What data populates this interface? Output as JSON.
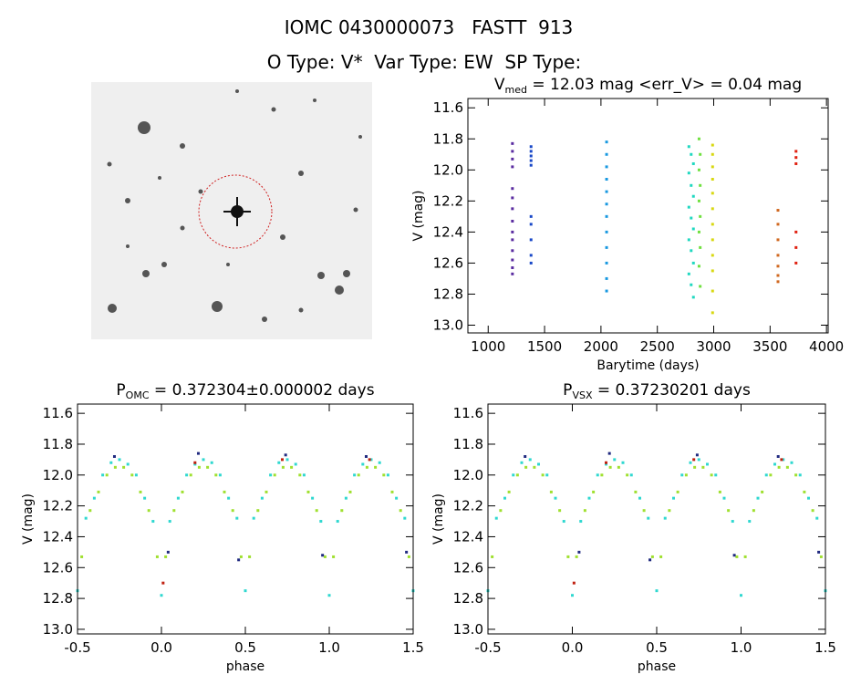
{
  "header": {
    "title": "IOMC 0430000073   FASTT  913",
    "subtitle": "O Type: V*  Var Type: EW  SP Type:"
  },
  "chart_data": [
    {
      "type": "scatter",
      "title": "V",
      "title_sub": "med",
      "title_rest": " = 12.03 mag <err_V> = 0.04 mag",
      "x_label": "Barytime (days)",
      "y_label": "V (mag)",
      "xlim": [
        820,
        4015
      ],
      "ylim": [
        13.05,
        11.54
      ],
      "xticks": [
        1000,
        1500,
        2000,
        2500,
        3000,
        3500,
        4000
      ],
      "yticks": [
        11.6,
        11.8,
        {
          "value": 12,
          "label": "12.0"
        },
        12.2,
        12.4,
        12.6,
        12.8,
        {
          "value": 13,
          "label": "13.0"
        }
      ],
      "series": [
        {
          "color": "#5a2ca0",
          "x": [
            1215,
            1215,
            1215,
            1215,
            1215,
            1215,
            1215,
            1215,
            1215,
            1215,
            1215,
            1215,
            1215,
            1215
          ],
          "values": [
            11.83,
            11.88,
            11.93,
            11.98,
            12.12,
            12.18,
            12.25,
            12.33,
            12.4,
            12.45,
            12.52,
            12.58,
            12.63,
            12.67
          ]
        },
        {
          "color": "#1848c8",
          "x": [
            1380,
            1380,
            1380,
            1380,
            1380,
            1380,
            1380,
            1380,
            1380,
            1380
          ],
          "values": [
            11.85,
            11.88,
            11.91,
            11.94,
            11.97,
            12.3,
            12.35,
            12.45,
            12.55,
            12.6
          ]
        },
        {
          "color": "#1898e0",
          "x": [
            2050,
            2050,
            2050,
            2050,
            2050,
            2050,
            2050,
            2050,
            2050,
            2050,
            2050,
            2050
          ],
          "values": [
            11.82,
            11.9,
            11.98,
            12.06,
            12.14,
            12.22,
            12.3,
            12.4,
            12.5,
            12.6,
            12.7,
            12.78
          ]
        },
        {
          "color": "#20d8c0",
          "x": [
            2780,
            2800,
            2820,
            2780,
            2800,
            2820,
            2780,
            2800,
            2820,
            2780,
            2800,
            2820,
            2780,
            2800,
            2820
          ],
          "values": [
            11.85,
            11.9,
            11.96,
            12.02,
            12.1,
            12.17,
            12.24,
            12.31,
            12.38,
            12.45,
            12.52,
            12.6,
            12.67,
            12.74,
            12.82
          ]
        },
        {
          "color": "#70e040",
          "x": [
            2870,
            2880,
            2870,
            2880,
            2870,
            2880,
            2870,
            2880,
            2870,
            2880
          ],
          "values": [
            11.8,
            11.9,
            12.0,
            12.1,
            12.2,
            12.3,
            12.4,
            12.5,
            12.62,
            12.75
          ]
        },
        {
          "color": "#d8d810",
          "x": [
            2990,
            2990,
            2990,
            2990,
            2990,
            2990,
            2990,
            2990,
            2990,
            2990,
            2990,
            2990
          ],
          "values": [
            11.84,
            11.9,
            11.98,
            12.06,
            12.15,
            12.25,
            12.35,
            12.45,
            12.55,
            12.65,
            12.78,
            12.92
          ]
        },
        {
          "color": "#d06820",
          "x": [
            3570,
            3570,
            3570,
            3570,
            3570,
            3570,
            3570
          ],
          "values": [
            12.26,
            12.35,
            12.45,
            12.55,
            12.62,
            12.68,
            12.72
          ]
        },
        {
          "color": "#e02010",
          "x": [
            3730,
            3730,
            3730,
            3730,
            3730,
            3730
          ],
          "values": [
            11.88,
            11.92,
            11.96,
            12.4,
            12.5,
            12.6
          ]
        }
      ]
    },
    {
      "type": "scatter",
      "title": "P",
      "title_sub": "OMC",
      "title_rest": " = 0.372304±0.000002 days",
      "x_label": "phase",
      "y_label": "V (mag)",
      "xlim": [
        -0.5,
        1.5
      ],
      "ylim": [
        13.03,
        11.54
      ],
      "xticks": [
        -0.5,
        {
          "value": 0,
          "label": "0.0"
        },
        0.5,
        {
          "value": 1,
          "label": "1.0"
        },
        1.5
      ],
      "yticks": [
        11.6,
        11.8,
        {
          "value": 12,
          "label": "12.0"
        },
        12.2,
        12.4,
        12.6,
        12.8,
        {
          "value": 13,
          "label": "13.0"
        }
      ],
      "series": [
        {
          "color": "#30d8d0",
          "x": [
            -0.5,
            -0.45,
            -0.4,
            -0.35,
            -0.3,
            -0.25,
            -0.2,
            -0.15,
            -0.1,
            -0.05,
            0,
            0.05,
            0.1,
            0.15,
            0.2,
            0.25,
            0.3,
            0.35,
            0.4,
            0.45,
            0.5,
            0.55,
            0.6,
            0.65,
            0.7,
            0.75,
            0.8,
            0.85,
            0.9,
            0.95,
            1,
            1.05,
            1.1,
            1.15,
            1.2,
            1.25,
            1.3,
            1.35,
            1.4,
            1.45,
            1.5
          ],
          "values": [
            12.75,
            12.28,
            12.15,
            12.0,
            11.92,
            11.9,
            11.93,
            12.0,
            12.15,
            12.3,
            12.78,
            12.3,
            12.15,
            12.0,
            11.93,
            11.9,
            11.92,
            12.0,
            12.15,
            12.28,
            12.75,
            12.28,
            12.15,
            12.0,
            11.92,
            11.9,
            11.93,
            12.0,
            12.15,
            12.3,
            12.78,
            12.3,
            12.15,
            12.0,
            11.93,
            11.9,
            11.92,
            12.0,
            12.15,
            12.28,
            12.75
          ]
        },
        {
          "color": "#a0e030",
          "x": [
            -0.475,
            -0.425,
            -0.375,
            -0.325,
            -0.275,
            -0.225,
            -0.175,
            -0.125,
            -0.075,
            -0.025,
            0.025,
            0.075,
            0.125,
            0.175,
            0.225,
            0.275,
            0.325,
            0.375,
            0.425,
            0.475,
            0.525,
            0.575,
            0.625,
            0.675,
            0.725,
            0.775,
            0.825,
            0.875,
            0.925,
            0.975,
            1.025,
            1.075,
            1.125,
            1.175,
            1.225,
            1.275,
            1.325,
            1.375,
            1.425,
            1.475
          ],
          "values": [
            12.53,
            12.23,
            12.11,
            12.0,
            11.95,
            11.95,
            12.0,
            12.11,
            12.23,
            12.53,
            12.53,
            12.23,
            12.11,
            12.0,
            11.95,
            11.95,
            12.0,
            12.11,
            12.23,
            12.53,
            12.53,
            12.23,
            12.11,
            12.0,
            11.95,
            11.95,
            12.0,
            12.11,
            12.23,
            12.53,
            12.53,
            12.23,
            12.11,
            12.0,
            11.95,
            11.95,
            12.0,
            12.11,
            12.23,
            12.53
          ]
        },
        {
          "color": "#202a80",
          "x": [
            -0.28,
            0.22,
            0.04,
            0.46,
            0.74,
            0.96,
            1.22,
            1.46
          ],
          "values": [
            11.88,
            11.86,
            12.5,
            12.55,
            11.87,
            12.52,
            11.88,
            12.5
          ]
        },
        {
          "color": "#c02010",
          "x": [
            0.2,
            0.01,
            0.72,
            1.24
          ],
          "values": [
            11.92,
            12.7,
            11.9,
            11.9
          ]
        }
      ]
    },
    {
      "type": "scatter",
      "title": "P",
      "title_sub": "VSX",
      "title_rest": " = 0.37230201 days",
      "x_label": "phase",
      "y_label": "V (mag)",
      "xlim": [
        -0.5,
        1.5
      ],
      "ylim": [
        13.03,
        11.54
      ],
      "xticks": [
        -0.5,
        {
          "value": 0,
          "label": "0.0"
        },
        0.5,
        {
          "value": 1,
          "label": "1.0"
        },
        1.5
      ],
      "yticks": [
        11.6,
        11.8,
        {
          "value": 12,
          "label": "12.0"
        },
        12.2,
        12.4,
        12.6,
        12.8,
        {
          "value": 13,
          "label": "13.0"
        }
      ],
      "series": [
        {
          "color": "#30d8d0",
          "x": [
            -0.5,
            -0.45,
            -0.4,
            -0.35,
            -0.3,
            -0.25,
            -0.2,
            -0.15,
            -0.1,
            -0.05,
            0,
            0.05,
            0.1,
            0.15,
            0.2,
            0.25,
            0.3,
            0.35,
            0.4,
            0.45,
            0.5,
            0.55,
            0.6,
            0.65,
            0.7,
            0.75,
            0.8,
            0.85,
            0.9,
            0.95,
            1,
            1.05,
            1.1,
            1.15,
            1.2,
            1.25,
            1.3,
            1.35,
            1.4,
            1.45,
            1.5
          ],
          "values": [
            12.75,
            12.28,
            12.15,
            12.0,
            11.92,
            11.9,
            11.93,
            12.0,
            12.15,
            12.3,
            12.78,
            12.3,
            12.15,
            12.0,
            11.93,
            11.9,
            11.92,
            12.0,
            12.15,
            12.28,
            12.75,
            12.28,
            12.15,
            12.0,
            11.92,
            11.9,
            11.93,
            12.0,
            12.15,
            12.3,
            12.78,
            12.3,
            12.15,
            12.0,
            11.93,
            11.9,
            11.92,
            12.0,
            12.15,
            12.28,
            12.75
          ]
        },
        {
          "color": "#a0e030",
          "x": [
            -0.475,
            -0.425,
            -0.375,
            -0.325,
            -0.275,
            -0.225,
            -0.175,
            -0.125,
            -0.075,
            -0.025,
            0.025,
            0.075,
            0.125,
            0.175,
            0.225,
            0.275,
            0.325,
            0.375,
            0.425,
            0.475,
            0.525,
            0.575,
            0.625,
            0.675,
            0.725,
            0.775,
            0.825,
            0.875,
            0.925,
            0.975,
            1.025,
            1.075,
            1.125,
            1.175,
            1.225,
            1.275,
            1.325,
            1.375,
            1.425,
            1.475
          ],
          "values": [
            12.53,
            12.23,
            12.11,
            12.0,
            11.95,
            11.95,
            12.0,
            12.11,
            12.23,
            12.53,
            12.53,
            12.23,
            12.11,
            12.0,
            11.95,
            11.95,
            12.0,
            12.11,
            12.23,
            12.53,
            12.53,
            12.23,
            12.11,
            12.0,
            11.95,
            11.95,
            12.0,
            12.11,
            12.23,
            12.53,
            12.53,
            12.23,
            12.11,
            12.0,
            11.95,
            11.95,
            12.0,
            12.11,
            12.23,
            12.53
          ]
        },
        {
          "color": "#202a80",
          "x": [
            -0.28,
            0.22,
            0.04,
            0.46,
            0.74,
            0.96,
            1.22,
            1.46
          ],
          "values": [
            11.88,
            11.86,
            12.5,
            12.55,
            11.87,
            12.52,
            11.88,
            12.5
          ]
        },
        {
          "color": "#c02010",
          "x": [
            0.2,
            0.01,
            0.72,
            1.24
          ],
          "values": [
            11.92,
            12.7,
            11.9,
            11.9
          ]
        }
      ]
    }
  ]
}
